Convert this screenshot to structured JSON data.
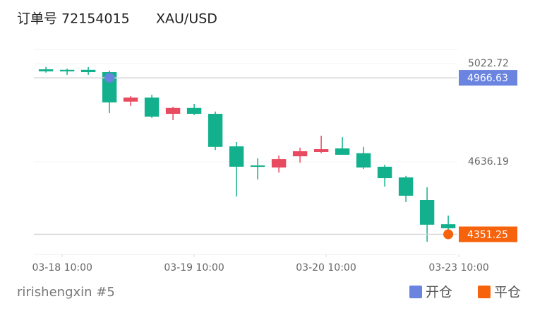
{
  "chart_data": {
    "type": "candlestick",
    "title": "订单号 72154015",
    "subtitle": "XAU/USD",
    "footer": "ririshengxin #5",
    "categories": [
      null,
      null,
      null,
      null,
      null,
      null,
      null,
      null,
      null,
      null,
      null,
      null,
      null,
      null,
      null,
      null,
      null,
      null,
      null,
      null
    ],
    "open": [
      5000,
      4998,
      4998,
      4989,
      4873,
      4889,
      4825,
      4848,
      4825,
      4697,
      4622,
      4614,
      4658,
      4675,
      4689,
      4670,
      4617,
      4575,
      4486,
      4391
    ],
    "high": [
      5009,
      5003,
      5009,
      4995,
      4895,
      4900,
      4853,
      4864,
      4834,
      4714,
      4650,
      4661,
      4692,
      4739,
      4733,
      4695,
      4625,
      4581,
      4536,
      4425
    ],
    "low": [
      4987,
      4978,
      4978,
      4828,
      4856,
      4809,
      4800,
      4820,
      4683,
      4500,
      4567,
      4594,
      4633,
      4670,
      4664,
      4608,
      4539,
      4478,
      4322,
      4355
    ],
    "close": [
      4992,
      4992,
      4989,
      4870,
      4889,
      4814,
      4848,
      4825,
      4695,
      4617,
      4617,
      4647,
      4678,
      4686,
      4664,
      4614,
      4572,
      4503,
      4389,
      4375
    ],
    "up_color": "#e84a5f",
    "down_color": "#12b08c",
    "markers": [
      {
        "name": "开仓",
        "color": "#6a84e0",
        "index": 3,
        "value": 4966.63
      },
      {
        "name": "平仓",
        "color": "#f7630c",
        "index": 19,
        "value": 4351.25
      }
    ],
    "xlim": [
      -0.57,
      19.43
    ],
    "xticks": [
      {
        "value": 0.77,
        "label": "03-18 10:00"
      },
      {
        "value": 7,
        "label": "03-19 10:00"
      },
      {
        "value": 13.23,
        "label": "03-20 10:00"
      },
      {
        "value": 19.5,
        "label": "03-23 10:00"
      }
    ],
    "ylim": [
      4272,
      5078
    ],
    "yticks": [
      5022.72,
      4636.19
    ]
  }
}
